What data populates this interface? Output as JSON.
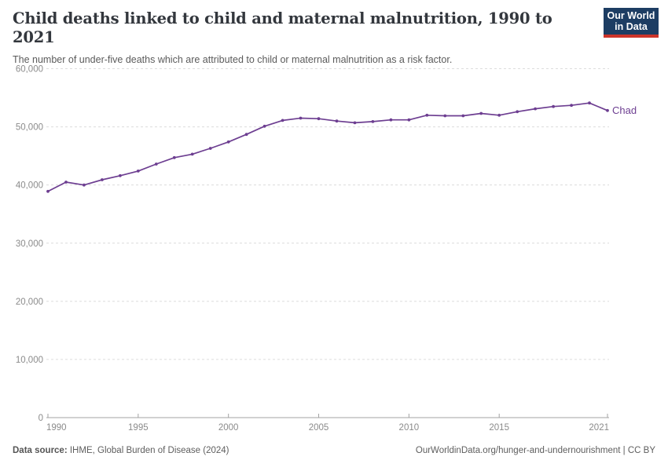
{
  "header": {
    "title": "Child deaths linked to child and maternal malnutrition, 1990 to 2021",
    "subtitle": "The number of under-five deaths which are attributed to child or maternal malnutrition as a risk factor."
  },
  "logo": {
    "line1": "Our World",
    "line2": "in Data",
    "bg_color": "#1d3d63",
    "accent_color": "#cc342a"
  },
  "chart_data": {
    "type": "line",
    "title": "Child deaths linked to child and maternal malnutrition, 1990 to 2021",
    "x": [
      1990,
      1991,
      1992,
      1993,
      1994,
      1995,
      1996,
      1997,
      1998,
      1999,
      2000,
      2001,
      2002,
      2003,
      2004,
      2005,
      2006,
      2007,
      2008,
      2009,
      2010,
      2011,
      2012,
      2013,
      2014,
      2015,
      2016,
      2017,
      2018,
      2019,
      2020,
      2021
    ],
    "series": [
      {
        "name": "Chad",
        "color": "#6d3e91",
        "values": [
          38900,
          40500,
          40000,
          40900,
          41600,
          42400,
          43600,
          44700,
          45300,
          46300,
          47400,
          48700,
          50100,
          51100,
          51500,
          51400,
          51000,
          50700,
          50900,
          51200,
          51200,
          52000,
          51900,
          51900,
          52300,
          52000,
          52600,
          53100,
          53500,
          53700,
          54100,
          52800
        ]
      }
    ],
    "xlabel": "",
    "ylabel": "",
    "ylim": [
      0,
      60000
    ],
    "yticks": [
      0,
      10000,
      20000,
      30000,
      40000,
      50000,
      60000
    ],
    "xticks": [
      1990,
      1995,
      2000,
      2005,
      2010,
      2015,
      2021
    ],
    "grid": "horizontal-dashed",
    "legend_position": "end-of-line-label",
    "entity_label": "Chad",
    "grid_color": "#dcdcdc",
    "axis_color": "#a3a3a3",
    "tick_label_color": "#8b8b8b"
  },
  "footer": {
    "source_label": "Data source:",
    "source_text": " IHME, Global Burden of Disease (2024)",
    "credit": "OurWorldinData.org/hunger-and-undernourishment | CC BY"
  }
}
